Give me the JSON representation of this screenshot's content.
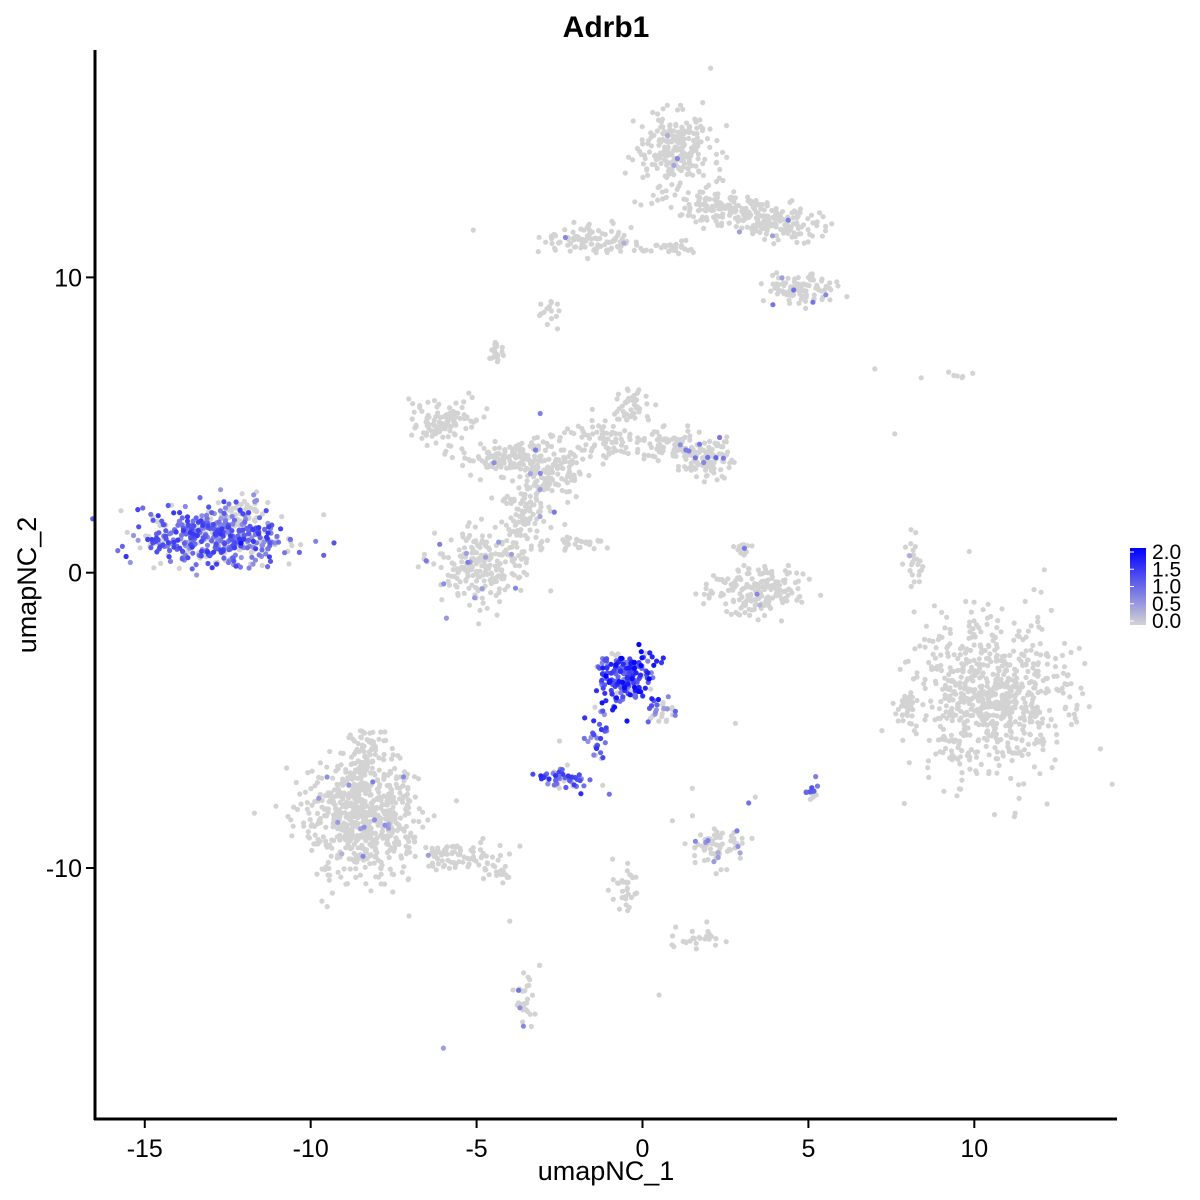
{
  "chart_data": {
    "type": "scatter",
    "title": "Adrb1",
    "xlabel": "umapNC_1",
    "ylabel": "umapNC_2",
    "xlim": [
      -16.5,
      14.3
    ],
    "ylim": [
      -18.5,
      17.7
    ],
    "x_ticks": [
      -15,
      -10,
      -5,
      0,
      5,
      10
    ],
    "x_tick_labels": [
      "-15",
      "-10",
      "-5",
      "0",
      "5",
      "10"
    ],
    "y_ticks": [
      -10,
      0,
      10
    ],
    "y_tick_labels": [
      "-10",
      "0",
      "10"
    ],
    "grid": false,
    "color_low": "#D3D3D3",
    "color_high": "#0000FF",
    "legend": {
      "placement": "right",
      "min": 0.0,
      "max": 2.0,
      "labels": [
        "2.0",
        "1.5",
        "1.0",
        "0.5",
        "0.0"
      ]
    },
    "clusters": [
      {
        "cx": -12.9,
        "cy": 1.2,
        "rx": 2.2,
        "ry": 1.0,
        "n": 480,
        "expr_frac": 0.72,
        "expr_max": 1.5
      },
      {
        "cx": -12.0,
        "cy": 2.1,
        "rx": 0.6,
        "ry": 0.5,
        "n": 40,
        "expr_frac": 0.3,
        "expr_max": 1.0
      },
      {
        "cx": -8.5,
        "cy": -8.3,
        "rx": 1.7,
        "ry": 2.0,
        "n": 640,
        "expr_frac": 0.02,
        "expr_max": 0.8
      },
      {
        "cx": -8.3,
        "cy": -6.0,
        "rx": 0.6,
        "ry": 0.8,
        "n": 60,
        "expr_frac": 0.0,
        "expr_max": 0
      },
      {
        "cx": -5.7,
        "cy": -9.6,
        "rx": 1.6,
        "ry": 0.5,
        "n": 90,
        "expr_frac": 0.0,
        "expr_max": 0
      },
      {
        "cx": -4.3,
        "cy": -10.2,
        "rx": 0.5,
        "ry": 0.3,
        "n": 20,
        "expr_frac": 0.0,
        "expr_max": 0
      },
      {
        "cx": -6.0,
        "cy": 5.2,
        "rx": 1.1,
        "ry": 0.7,
        "n": 110,
        "expr_frac": 0.0,
        "expr_max": 0
      },
      {
        "cx": -4.2,
        "cy": 3.9,
        "rx": 1.3,
        "ry": 0.5,
        "n": 110,
        "expr_frac": 0.02,
        "expr_max": 0.8
      },
      {
        "cx": -4.8,
        "cy": 0.2,
        "rx": 1.4,
        "ry": 1.3,
        "n": 230,
        "expr_frac": 0.05,
        "expr_max": 1.0
      },
      {
        "cx": -3.5,
        "cy": 2.0,
        "rx": 0.7,
        "ry": 1.3,
        "n": 90,
        "expr_frac": 0.04,
        "expr_max": 0.9
      },
      {
        "cx": -2.8,
        "cy": 3.5,
        "rx": 1.0,
        "ry": 1.0,
        "n": 140,
        "expr_frac": 0.02,
        "expr_max": 0.9
      },
      {
        "cx": -1.2,
        "cy": 4.5,
        "rx": 1.3,
        "ry": 0.8,
        "n": 90,
        "expr_frac": 0.0,
        "expr_max": 0
      },
      {
        "cx": -0.3,
        "cy": 5.7,
        "rx": 0.6,
        "ry": 0.6,
        "n": 40,
        "expr_frac": 0.0,
        "expr_max": 0
      },
      {
        "cx": -1.8,
        "cy": 1.0,
        "rx": 0.8,
        "ry": 0.2,
        "n": 25,
        "expr_frac": 0.0,
        "expr_max": 0
      },
      {
        "cx": -4.4,
        "cy": 7.4,
        "rx": 0.2,
        "ry": 0.3,
        "n": 20,
        "expr_frac": 0.0,
        "expr_max": 0
      },
      {
        "cx": 0.8,
        "cy": 4.3,
        "rx": 0.9,
        "ry": 0.5,
        "n": 70,
        "expr_frac": 0.02,
        "expr_max": 0.8
      },
      {
        "cx": 2.0,
        "cy": 3.9,
        "rx": 0.8,
        "ry": 0.6,
        "n": 110,
        "expr_frac": 0.12,
        "expr_max": 1.1
      },
      {
        "cx": 1.0,
        "cy": 14.3,
        "rx": 1.1,
        "ry": 1.3,
        "n": 240,
        "expr_frac": 0.01,
        "expr_max": 0.8
      },
      {
        "cx": 2.3,
        "cy": 12.3,
        "rx": 1.5,
        "ry": 0.6,
        "n": 130,
        "expr_frac": 0.01,
        "expr_max": 0.8
      },
      {
        "cx": 4.2,
        "cy": 11.8,
        "rx": 1.4,
        "ry": 0.6,
        "n": 130,
        "expr_frac": 0.02,
        "expr_max": 0.8
      },
      {
        "cx": 4.7,
        "cy": 9.6,
        "rx": 1.0,
        "ry": 0.6,
        "n": 100,
        "expr_frac": 0.05,
        "expr_max": 1.0
      },
      {
        "cx": -1.5,
        "cy": 11.3,
        "rx": 1.5,
        "ry": 0.5,
        "n": 100,
        "expr_frac": 0.02,
        "expr_max": 0.8
      },
      {
        "cx": 0.8,
        "cy": 11.0,
        "rx": 0.9,
        "ry": 0.2,
        "n": 30,
        "expr_frac": 0.0,
        "expr_max": 0
      },
      {
        "cx": -2.8,
        "cy": 8.8,
        "rx": 0.3,
        "ry": 0.5,
        "n": 15,
        "expr_frac": 0.0,
        "expr_max": 0
      },
      {
        "cx": 3.4,
        "cy": -0.6,
        "rx": 1.5,
        "ry": 0.8,
        "n": 170,
        "expr_frac": 0.01,
        "expr_max": 0.8
      },
      {
        "cx": 3.0,
        "cy": 0.8,
        "rx": 0.3,
        "ry": 0.4,
        "n": 15,
        "expr_frac": 0.05,
        "expr_max": 0.9
      },
      {
        "cx": -0.5,
        "cy": -3.5,
        "rx": 0.9,
        "ry": 0.9,
        "n": 190,
        "expr_frac": 0.85,
        "expr_max": 2.0
      },
      {
        "cx": 0.6,
        "cy": -4.6,
        "rx": 0.5,
        "ry": 0.6,
        "n": 30,
        "expr_frac": 0.55,
        "expr_max": 1.3
      },
      {
        "cx": -1.4,
        "cy": -5.5,
        "rx": 0.4,
        "ry": 0.9,
        "n": 30,
        "expr_frac": 0.85,
        "expr_max": 1.6
      },
      {
        "cx": -2.4,
        "cy": -7.0,
        "rx": 0.6,
        "ry": 0.4,
        "n": 45,
        "expr_frac": 0.8,
        "expr_max": 1.6
      },
      {
        "cx": -0.5,
        "cy": -10.6,
        "rx": 0.4,
        "ry": 0.8,
        "n": 30,
        "expr_frac": 0.0,
        "expr_max": 0
      },
      {
        "cx": 1.5,
        "cy": -12.4,
        "rx": 1.0,
        "ry": 0.3,
        "n": 25,
        "expr_frac": 0.0,
        "expr_max": 0
      },
      {
        "cx": 2.3,
        "cy": -9.3,
        "rx": 0.8,
        "ry": 0.6,
        "n": 70,
        "expr_frac": 0.08,
        "expr_max": 1.0
      },
      {
        "cx": 5.1,
        "cy": -7.4,
        "rx": 0.2,
        "ry": 0.3,
        "n": 15,
        "expr_frac": 0.7,
        "expr_max": 1.3
      },
      {
        "cx": 10.5,
        "cy": -4.2,
        "rx": 2.3,
        "ry": 2.6,
        "n": 720,
        "expr_frac": 0.0,
        "expr_max": 0
      },
      {
        "cx": 7.9,
        "cy": -4.6,
        "rx": 0.3,
        "ry": 0.6,
        "n": 30,
        "expr_frac": 0.0,
        "expr_max": 0
      },
      {
        "cx": 8.2,
        "cy": 0.2,
        "rx": 0.3,
        "ry": 0.9,
        "n": 25,
        "expr_frac": 0.05,
        "expr_max": 0.9
      },
      {
        "cx": -3.6,
        "cy": -14.5,
        "rx": 0.3,
        "ry": 0.9,
        "n": 30,
        "expr_frac": 0.15,
        "expr_max": 1.0
      },
      {
        "cx": 9.5,
        "cy": 6.7,
        "rx": 0.4,
        "ry": 0.2,
        "n": 6,
        "expr_frac": 0.0,
        "expr_max": 0
      }
    ],
    "points": [
      {
        "x": -6.0,
        "y": -16.1,
        "v": 0.5
      },
      {
        "x": -1.1,
        "y": -3.5,
        "v": 2.0
      },
      {
        "x": -12.1,
        "y": 1.0,
        "v": 1.8
      },
      {
        "x": 1.0,
        "y": -12.0,
        "v": 0.0
      },
      {
        "x": 0.5,
        "y": -14.3,
        "v": 0.0
      },
      {
        "x": 7.0,
        "y": 6.9,
        "v": 0.0
      },
      {
        "x": 8.4,
        "y": 6.6,
        "v": 0.0
      },
      {
        "x": 7.6,
        "y": 4.7,
        "v": 0.0
      },
      {
        "x": -2.5,
        "y": -5.7,
        "v": 0.0
      },
      {
        "x": 1.5,
        "y": -7.3,
        "v": 0.0
      },
      {
        "x": 2.8,
        "y": -5.1,
        "v": 0.0
      },
      {
        "x": 3.2,
        "y": -7.8,
        "v": 0.9
      },
      {
        "x": 3.4,
        "y": -7.6,
        "v": 0.0
      },
      {
        "x": -1.2,
        "y": -7.2,
        "v": 0.0
      },
      {
        "x": -1.0,
        "y": -7.5,
        "v": 0.9
      },
      {
        "x": -4.0,
        "y": -11.8,
        "v": 0.0
      },
      {
        "x": -3.1,
        "y": -13.3,
        "v": 0.0
      },
      {
        "x": -0.9,
        "y": -9.7,
        "v": 0.0
      },
      {
        "x": 0.9,
        "y": -8.4,
        "v": 0.0
      },
      {
        "x": -5.1,
        "y": 11.6,
        "v": 0.0
      }
    ]
  }
}
